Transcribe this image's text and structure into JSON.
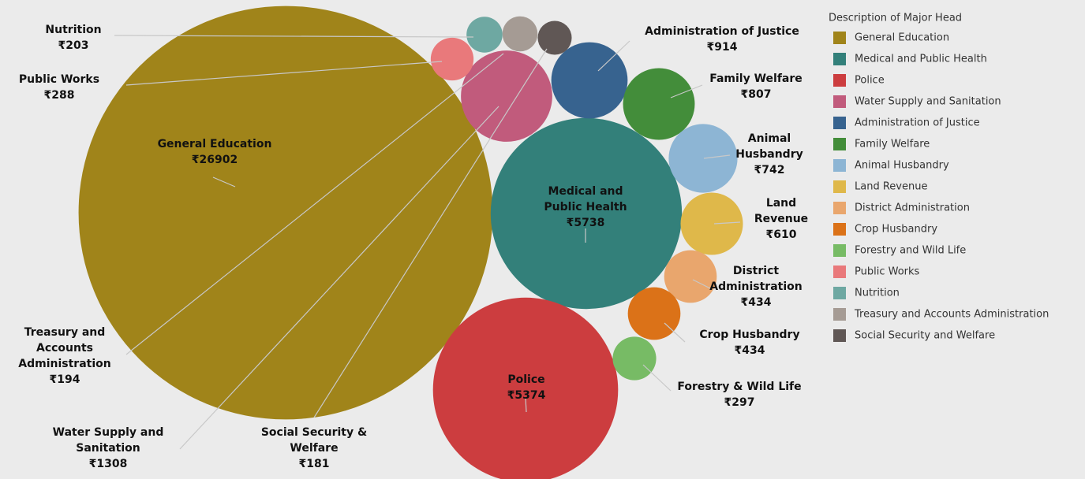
{
  "chart_data": {
    "type": "bubble",
    "legend_title": "Description of Major Head",
    "categories": [
      "General Education",
      "Medical and Public Health",
      "Police",
      "Water Supply and Sanitation",
      "Administration of Justice",
      "Family Welfare",
      "Animal Husbandry",
      "Land Revenue",
      "District Administration",
      "Crop Husbandry",
      "Forestry and Wild Life",
      "Public Works",
      "Nutrition",
      "Treasury and Accounts Administration",
      "Social Security and Welfare"
    ],
    "labels": [
      [
        "General Education"
      ],
      [
        "Medical and",
        "Public Health"
      ],
      [
        "Police"
      ],
      [
        "Water Supply and",
        "Sanitation"
      ],
      [
        "Administration of Justice"
      ],
      [
        "Family Welfare"
      ],
      [
        "Animal",
        "Husbandry"
      ],
      [
        "Land",
        "Revenue"
      ],
      [
        "District",
        "Administration"
      ],
      [
        "Crop Husbandry"
      ],
      [
        "Forestry & Wild Life"
      ],
      [
        "Public Works"
      ],
      [
        "Nutrition"
      ],
      [
        "Treasury and",
        "Accounts",
        "Administration"
      ],
      [
        "Social Security &",
        "Welfare"
      ]
    ],
    "values": [
      26902,
      5738,
      5374,
      1308,
      914,
      807,
      742,
      610,
      434,
      434,
      297,
      288,
      203,
      194,
      181
    ],
    "value_labels": [
      "₹26902",
      "₹5738",
      "₹5374",
      "₹1308",
      "₹914",
      "₹807",
      "₹742",
      "₹610",
      "₹434",
      "₹434",
      "₹297",
      "₹288",
      "₹203",
      "₹194",
      "₹181"
    ],
    "colors": [
      "#a0841a",
      "#33807a",
      "#cc3d3f",
      "#c15b7c",
      "#37638f",
      "#438d3a",
      "#8db5d4",
      "#dfb84a",
      "#e9a66d",
      "#db7218",
      "#77bb65",
      "#e9797b",
      "#6ea8a2",
      "#a59b94",
      "#605755"
    ]
  }
}
